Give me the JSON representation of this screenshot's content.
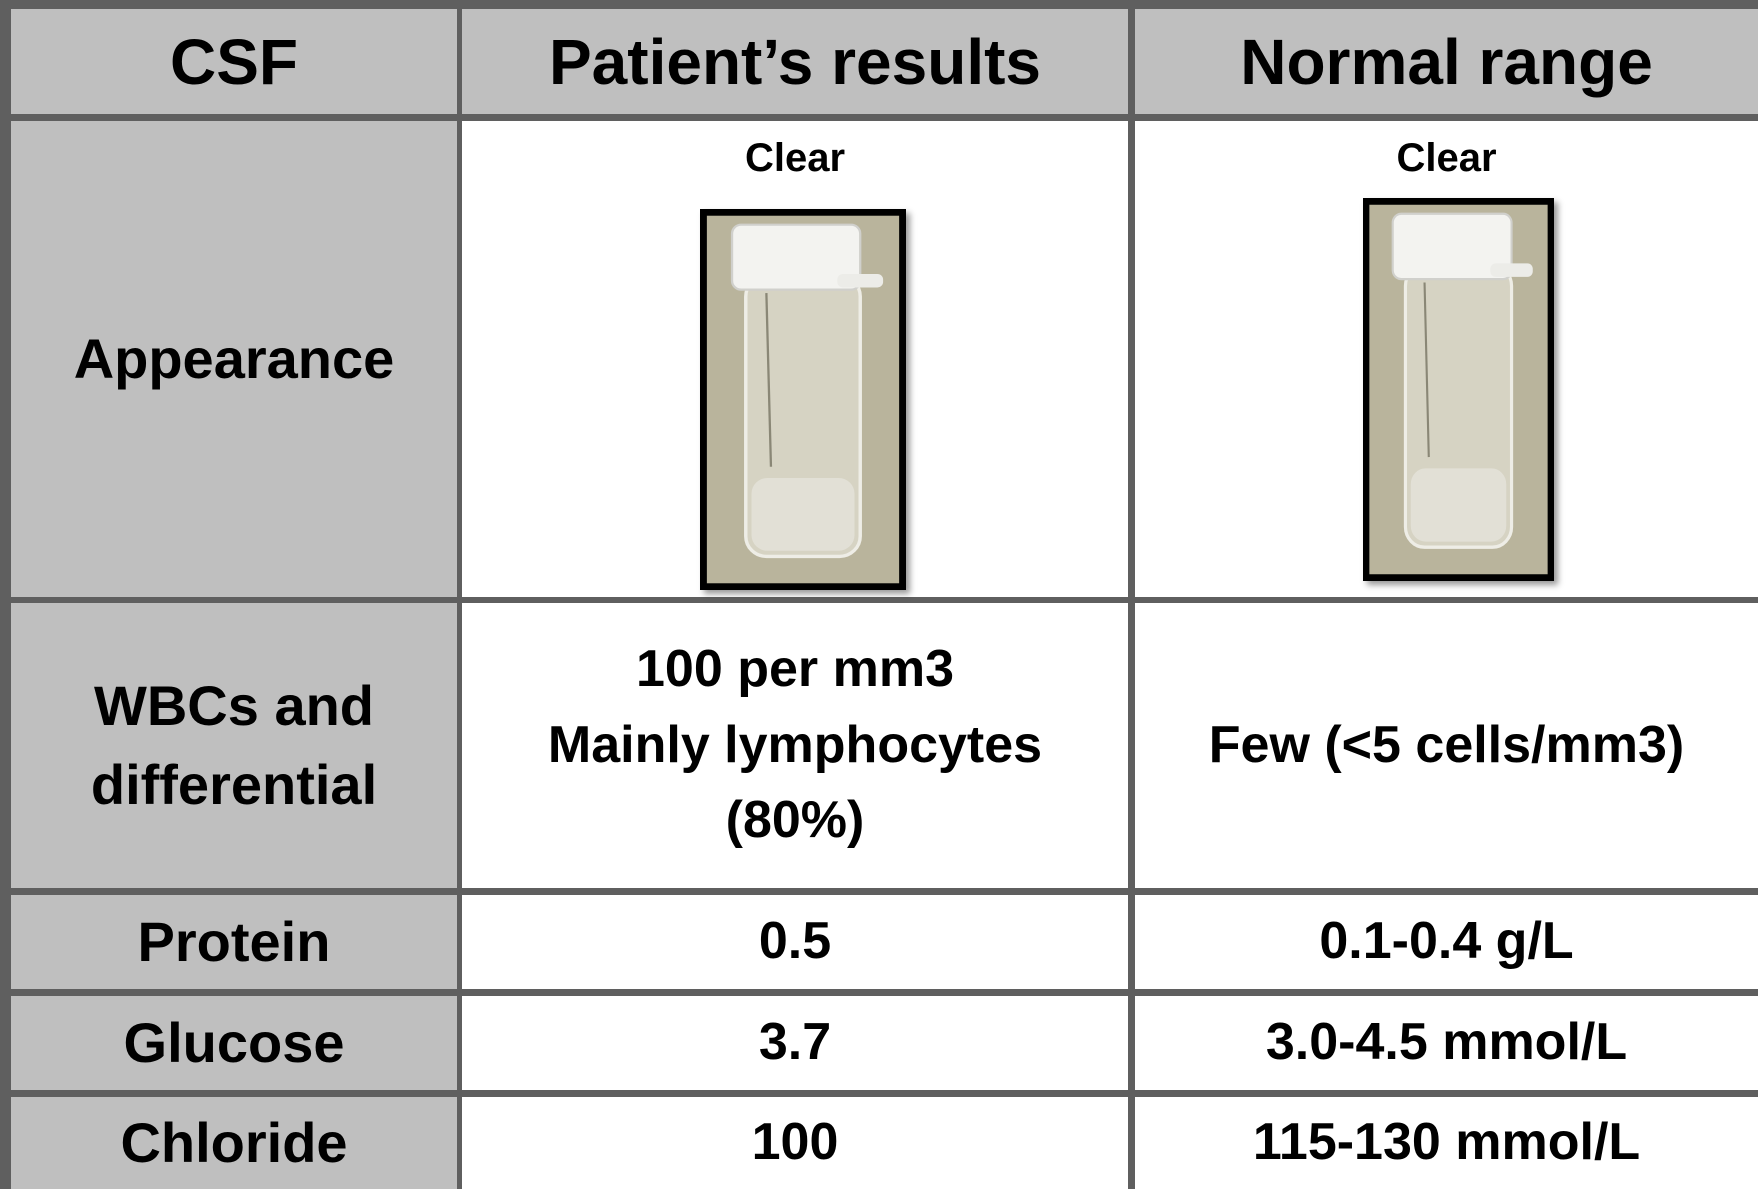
{
  "table": {
    "header": [
      "CSF",
      "Patient’s results",
      "Normal range"
    ],
    "rows": [
      [
        "Appearance",
        "Clear",
        "Clear"
      ],
      [
        "WBCs and differential",
        [
          "100 per mm3",
          "Mainly lymphocytes",
          "(80%)"
        ],
        "Few (<5 cells/mm3)"
      ],
      [
        "Protein",
        "0.5",
        "0.1-0.4 g/L"
      ],
      [
        "Glucose",
        "3.7",
        "3.0-4.5 mmol/L"
      ],
      [
        "Chloride",
        "100",
        "115-130 mmol/L"
      ]
    ]
  }
}
